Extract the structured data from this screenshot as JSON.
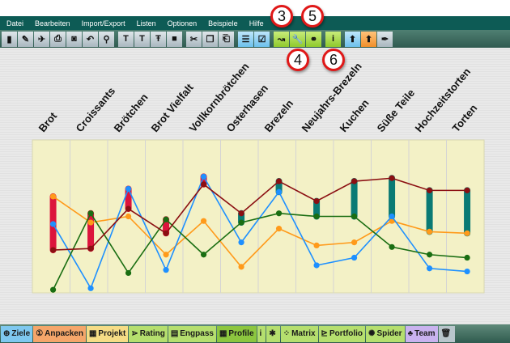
{
  "menu": [
    "Datei",
    "Bearbeiten",
    "Import/Export",
    "Listen",
    "Optionen",
    "Beispiele",
    "Hilfe"
  ],
  "toolbar": [
    {
      "icon": "new-file-icon",
      "g": "▮",
      "c": ""
    },
    {
      "icon": "open-icon",
      "g": "✎",
      "c": ""
    },
    {
      "icon": "tools-icon",
      "g": "✈",
      "c": ""
    },
    {
      "icon": "print-icon",
      "g": "⎙",
      "c": ""
    },
    {
      "icon": "camera-icon",
      "g": "◙",
      "c": ""
    },
    {
      "icon": "undo-icon",
      "g": "↶",
      "c": ""
    },
    {
      "icon": "zoom-icon",
      "g": "⚲",
      "c": ""
    },
    {
      "icon": "text-bold-icon",
      "g": "T",
      "c": "sep"
    },
    {
      "icon": "text-italic-icon",
      "g": "T",
      "c": ""
    },
    {
      "icon": "text-strike-icon",
      "g": "Ŧ",
      "c": ""
    },
    {
      "icon": "color-icon",
      "g": "■",
      "c": ""
    },
    {
      "icon": "cut-icon",
      "g": "✂",
      "c": "sep"
    },
    {
      "icon": "copy-icon",
      "g": "❐",
      "c": ""
    },
    {
      "icon": "paste-icon",
      "g": "⎗",
      "c": ""
    },
    {
      "icon": "comment-icon",
      "g": "☰",
      "c": "sep blue"
    },
    {
      "icon": "checkbox-icon",
      "g": "☑",
      "c": "blue"
    },
    {
      "icon": "curve-icon",
      "g": "↝",
      "c": "sep green"
    },
    {
      "icon": "wrench-icon",
      "g": "🔧",
      "c": "green"
    },
    {
      "icon": "link-icon",
      "g": "⚭",
      "c": "green"
    },
    {
      "icon": "info-icon",
      "g": "i",
      "c": "sep green"
    },
    {
      "icon": "upload-blue-icon",
      "g": "⬆",
      "c": "sep blue"
    },
    {
      "icon": "upload-orange-icon",
      "g": "⬆",
      "c": "orange"
    },
    {
      "icon": "pen-icon",
      "g": "✒",
      "c": ""
    }
  ],
  "callouts": [
    "3",
    "4",
    "5",
    "6"
  ],
  "chart_data": {
    "type": "line",
    "categories": [
      "Brot",
      "Croissants",
      "Brötchen",
      "Brot Vielfalt",
      "Vollkornbrötchen",
      "Osterhasen",
      "Brezeln",
      "Neujahrs-Brezeln",
      "Kuchen",
      "Süße Teile",
      "Hochzeitstorten",
      "Torten"
    ],
    "ylim": [
      0,
      10
    ],
    "grid": "vertical",
    "background": "#f3f1c6",
    "series": [
      {
        "color": "#ff9a1a",
        "values": [
          6.3,
          4.6,
          5.0,
          2.5,
          4.7,
          1.7,
          4.2,
          3.1,
          3.3,
          4.7,
          4.0,
          3.9
        ]
      },
      {
        "color": "#1e90ff",
        "values": [
          4.5,
          0.3,
          6.8,
          1.5,
          7.6,
          3.3,
          6.6,
          1.8,
          2.3,
          5.0,
          1.6,
          1.4
        ]
      },
      {
        "color": "#1a6e12",
        "values": [
          0.2,
          5.2,
          1.3,
          4.8,
          2.5,
          4.6,
          5.2,
          5.0,
          5.0,
          3.0,
          2.5,
          2.3
        ]
      },
      {
        "color": "#8b0f12",
        "values": [
          2.8,
          2.9,
          5.5,
          3.9,
          7.1,
          5.2,
          7.3,
          6.0,
          7.3,
          7.5,
          6.7,
          6.7
        ]
      }
    ],
    "gap_bars": {
      "behind_color": "#dc143c",
      "ahead_color": "#0a7a74"
    }
  },
  "bottom_tabs": [
    {
      "label": "Ziele",
      "icon": "globe-icon",
      "g": "⊕",
      "bg": "#7ec8ef"
    },
    {
      "label": "Anpacken",
      "icon": "number-one-icon",
      "g": "①",
      "bg": "#f5a66a"
    },
    {
      "label": "Projekt",
      "icon": "project-icon",
      "g": "▦",
      "bg": "#f6dd86"
    },
    {
      "label": "Rating",
      "icon": "rating-icon",
      "g": "⋗",
      "bg": "#b5df6e"
    },
    {
      "label": "Engpass",
      "icon": "bottleneck-icon",
      "g": "▤",
      "bg": "#b5df6e"
    },
    {
      "label": "Profile",
      "icon": "profile-icon",
      "g": "▦",
      "bg": "#8cc63f"
    },
    {
      "label": "",
      "icon": "info-icon",
      "g": "i",
      "bg": "#b5df6e"
    },
    {
      "label": "",
      "icon": "asterisk-icon",
      "g": "✱",
      "bg": "#b5df6e"
    },
    {
      "label": "Matrix",
      "icon": "matrix-icon",
      "g": "⁘",
      "bg": "#b5df6e"
    },
    {
      "label": "Portfolio",
      "icon": "portfolio-icon",
      "g": "⊵",
      "bg": "#b5df6e"
    },
    {
      "label": "Spider",
      "icon": "spider-icon",
      "g": "✺",
      "bg": "#b5df6e"
    },
    {
      "label": "Team",
      "icon": "team-icon",
      "g": "♣",
      "bg": "#c9b3ef"
    },
    {
      "label": "",
      "icon": "trash-icon",
      "g": "🗑",
      "bg": "#b9c6cc"
    }
  ]
}
